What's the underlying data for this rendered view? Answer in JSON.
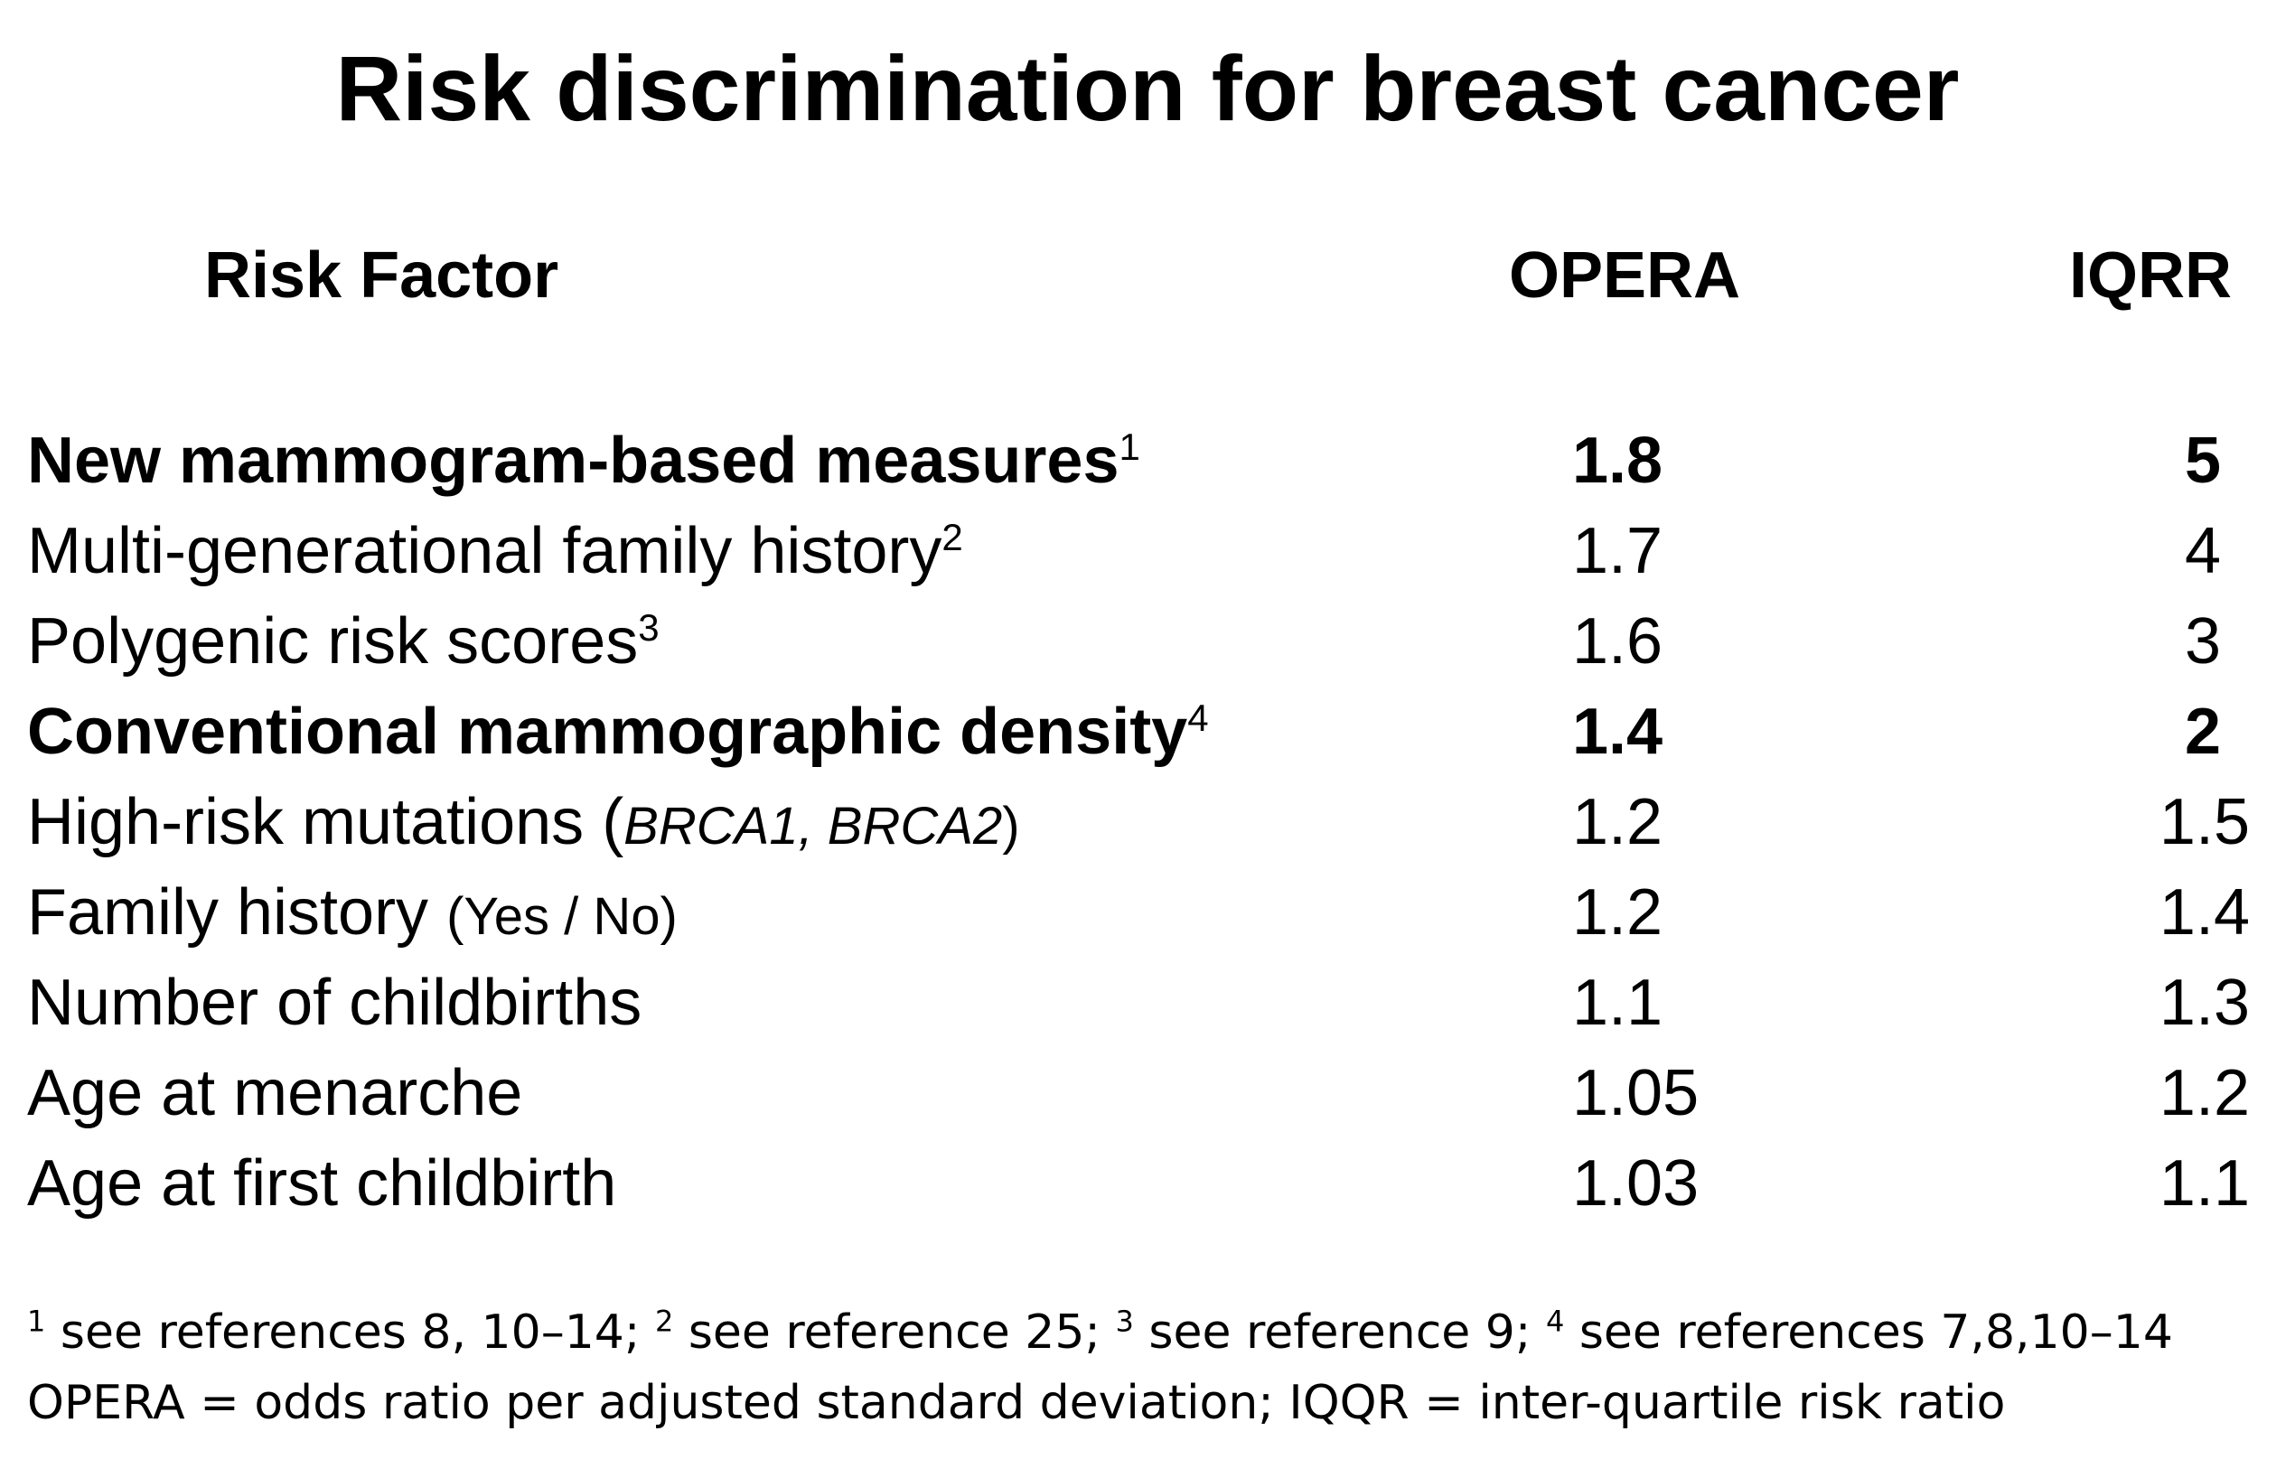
{
  "title": "Risk discrimination for breast cancer",
  "headers": {
    "factor": "Risk Factor",
    "opera": "OPERA",
    "iqrr": "IQRR"
  },
  "rows": [
    {
      "factor": "New mammogram-based measures",
      "sup": "1",
      "opera": "1.8",
      "iqrr": "5",
      "bold": true
    },
    {
      "factor": "Multi-generational  family history",
      "sup": "2",
      "opera": "1.7",
      "iqrr": "4",
      "bold": false
    },
    {
      "factor": "Polygenic  risk scores",
      "sup": "3",
      "opera": "1.6",
      "iqrr": "3",
      "bold": false
    },
    {
      "factor": "Conventional  mammographic density",
      "sup": "4",
      "opera": "1.4",
      "iqrr": "2",
      "bold": true
    },
    {
      "factor": "High-risk  mutations (",
      "italic": "BRCA1, BRCA2",
      "suffix": ")",
      "opera": "1.2",
      "iqrr": "1.5",
      "bold": false
    },
    {
      "factor": "Family history ",
      "paren": "(Yes / No)",
      "opera": "1.2",
      "iqrr": "1.4",
      "bold": false
    },
    {
      "factor": "Number of childbirths",
      "opera": "1.1",
      "iqrr": "1.3",
      "bold": false
    },
    {
      "factor": "Age at menarche",
      "opera": "1.05",
      "iqrr": "1.2",
      "bold": false
    },
    {
      "factor": "Age at first childbirth",
      "opera": "1.03",
      "iqrr": "1.1",
      "bold": false
    }
  ],
  "footnotes": {
    "line1": [
      {
        "sup": "1",
        "text": " see references 8, 10–14; "
      },
      {
        "sup": "2",
        "text": " see reference 25; "
      },
      {
        "sup": "3",
        "text": " see reference 9; "
      },
      {
        "sup": "4",
        "text": " see references 7,8,10–14"
      }
    ],
    "line2": "OPERA = odds ratio per adjusted standard deviation; IQQR = inter-quartile risk ratio"
  }
}
